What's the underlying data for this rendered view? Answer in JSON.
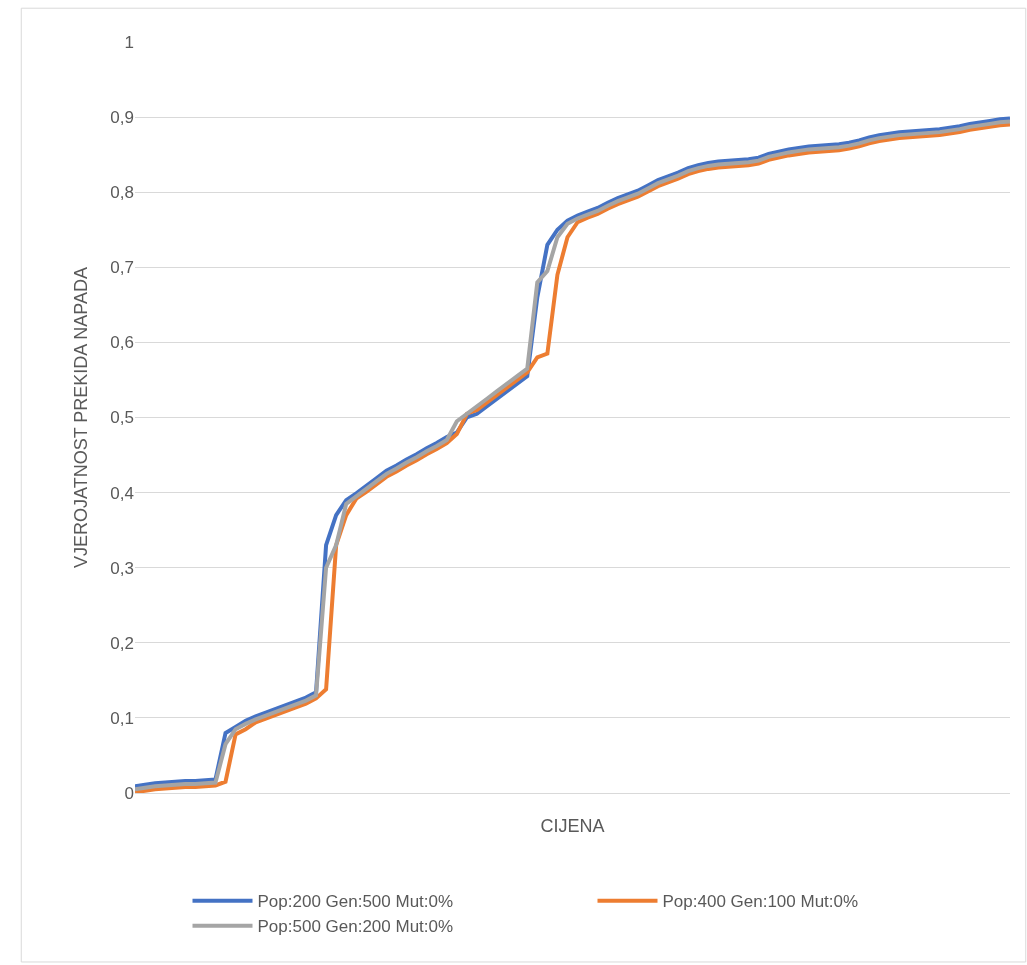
{
  "chart_data": {
    "type": "line",
    "xlabel": "CIJENA",
    "ylabel": "VJEROJATNOST PREKIDA NAPADA",
    "categories": [
      null,
      null,
      null,
      null,
      null,
      null,
      null,
      null,
      null,
      null,
      null,
      null,
      null,
      null,
      null,
      null,
      null,
      null,
      null,
      null,
      null,
      null,
      null,
      null,
      null,
      null,
      null,
      null,
      null,
      null,
      null,
      null,
      null,
      null,
      null,
      null,
      null,
      null,
      null,
      null,
      null,
      null,
      null,
      null,
      null,
      null,
      null,
      null,
      null,
      null,
      null,
      null,
      null,
      null,
      null,
      null,
      null,
      null,
      null,
      null,
      null,
      null,
      null,
      null,
      null,
      null,
      null,
      null,
      null,
      null,
      null,
      null,
      null,
      null,
      null,
      null,
      null,
      null,
      null,
      null,
      null,
      null,
      null,
      null,
      null,
      null,
      null,
      null
    ],
    "series": [
      {
        "name": "Pop:200 Gen:500 Mut:0%",
        "color": "#4472c4",
        "values": [
          0.009,
          0.011,
          0.013,
          0.014,
          0.015,
          0.016,
          0.016,
          0.017,
          0.018,
          0.08,
          0.088,
          0.096,
          0.102,
          0.107,
          0.112,
          0.117,
          0.122,
          0.127,
          0.134,
          0.33,
          0.37,
          0.39,
          0.399,
          0.409,
          0.419,
          0.429,
          0.436,
          0.444,
          0.451,
          0.459,
          0.466,
          0.474,
          0.48,
          0.5,
          0.505,
          0.515,
          0.525,
          0.535,
          0.545,
          0.555,
          0.66,
          0.73,
          0.75,
          0.762,
          0.769,
          0.774,
          0.779,
          0.786,
          0.792,
          0.797,
          0.802,
          0.809,
          0.816,
          0.821,
          0.826,
          0.832,
          0.836,
          0.839,
          0.841,
          0.842,
          0.843,
          0.844,
          0.846,
          0.851,
          0.854,
          0.857,
          0.859,
          0.861,
          0.862,
          0.863,
          0.864,
          0.866,
          0.869,
          0.873,
          0.876,
          0.878,
          0.88,
          0.881,
          0.882,
          0.883,
          0.884,
          0.886,
          0.888,
          0.891,
          0.893,
          0.895,
          0.897,
          0.898
        ]
      },
      {
        "name": "Pop:400 Gen:100 Mut:0%",
        "color": "#ed7d31",
        "values": [
          0.001,
          0.003,
          0.005,
          0.006,
          0.007,
          0.008,
          0.008,
          0.009,
          0.01,
          0.015,
          0.078,
          0.085,
          0.094,
          0.099,
          0.104,
          0.109,
          0.114,
          0.119,
          0.126,
          0.138,
          0.33,
          0.37,
          0.392,
          0.401,
          0.411,
          0.421,
          0.428,
          0.436,
          0.443,
          0.451,
          0.458,
          0.466,
          0.478,
          0.505,
          0.51,
          0.52,
          0.53,
          0.54,
          0.55,
          0.56,
          0.58,
          0.585,
          0.69,
          0.74,
          0.76,
          0.766,
          0.771,
          0.778,
          0.784,
          0.789,
          0.794,
          0.801,
          0.808,
          0.813,
          0.818,
          0.824,
          0.828,
          0.831,
          0.833,
          0.834,
          0.835,
          0.836,
          0.838,
          0.843,
          0.846,
          0.849,
          0.851,
          0.853,
          0.854,
          0.855,
          0.856,
          0.858,
          0.861,
          0.865,
          0.868,
          0.87,
          0.872,
          0.873,
          0.874,
          0.875,
          0.876,
          0.878,
          0.88,
          0.883,
          0.885,
          0.887,
          0.889,
          0.89
        ]
      },
      {
        "name": "Pop:500 Gen:200 Mut:0%",
        "color": "#a5a5a5",
        "values": [
          0.005,
          0.007,
          0.009,
          0.01,
          0.011,
          0.012,
          0.012,
          0.013,
          0.014,
          0.065,
          0.085,
          0.092,
          0.098,
          0.103,
          0.108,
          0.113,
          0.118,
          0.123,
          0.13,
          0.3,
          0.33,
          0.385,
          0.395,
          0.405,
          0.415,
          0.425,
          0.432,
          0.44,
          0.447,
          0.455,
          0.462,
          0.47,
          0.495,
          0.505,
          0.515,
          0.525,
          0.535,
          0.545,
          0.555,
          0.565,
          0.68,
          0.695,
          0.74,
          0.758,
          0.765,
          0.77,
          0.775,
          0.782,
          0.788,
          0.793,
          0.798,
          0.805,
          0.812,
          0.817,
          0.822,
          0.828,
          0.832,
          0.835,
          0.837,
          0.838,
          0.839,
          0.84,
          0.842,
          0.847,
          0.85,
          0.853,
          0.855,
          0.857,
          0.858,
          0.859,
          0.86,
          0.862,
          0.865,
          0.869,
          0.872,
          0.874,
          0.876,
          0.877,
          0.878,
          0.879,
          0.88,
          0.882,
          0.884,
          0.887,
          0.889,
          0.891,
          0.893,
          0.894
        ]
      }
    ],
    "ylim": [
      0,
      1
    ],
    "yticks": [
      {
        "value": 0,
        "label": "0"
      },
      {
        "value": 0.1,
        "label": "0,1"
      },
      {
        "value": 0.2,
        "label": "0,2"
      },
      {
        "value": 0.3,
        "label": "0,3"
      },
      {
        "value": 0.4,
        "label": "0,4"
      },
      {
        "value": 0.5,
        "label": "0,5"
      },
      {
        "value": 0.6,
        "label": "0,6"
      },
      {
        "value": 0.7,
        "label": "0,7"
      },
      {
        "value": 0.8,
        "label": "0,8"
      },
      {
        "value": 0.9,
        "label": "0,9"
      },
      {
        "value": 1,
        "label": "1"
      }
    ],
    "grid": "y",
    "legend": "bottom",
    "marker": "none",
    "line_style": "solid"
  }
}
